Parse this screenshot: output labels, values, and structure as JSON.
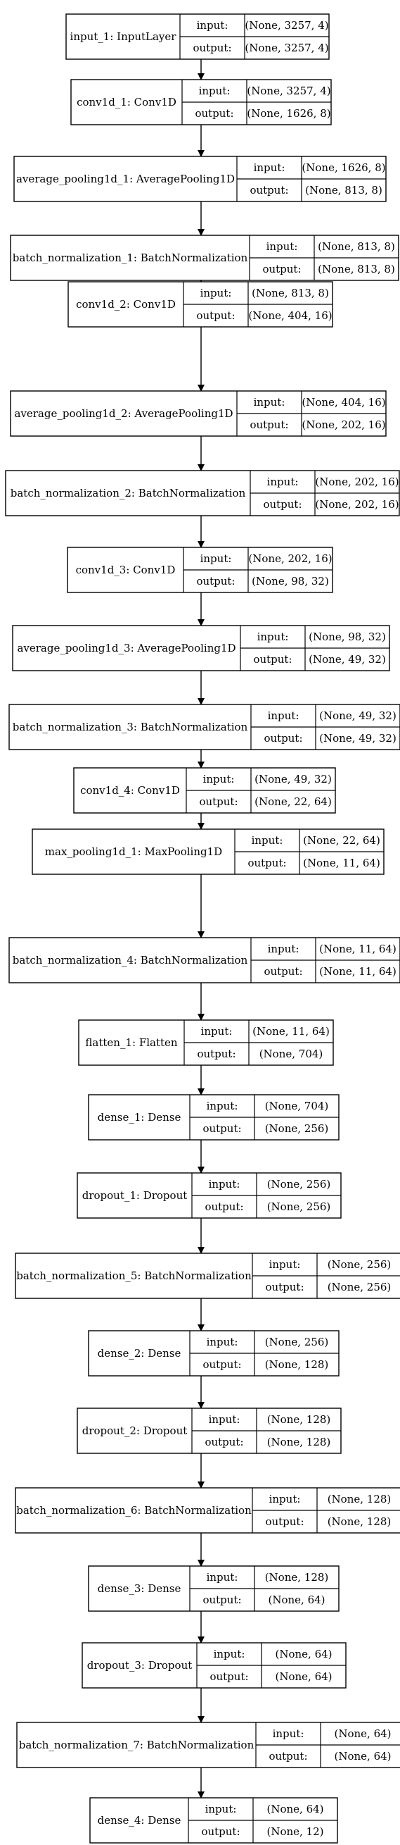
{
  "io_labels": {
    "input": "input:",
    "output": "output:"
  },
  "layers": [
    {
      "name": "input_1: InputLayer",
      "input": "(None, 3257, 4)",
      "output": "(None, 3257, 4)"
    },
    {
      "name": "conv1d_1: Conv1D",
      "input": "(None, 3257, 4)",
      "output": "(None, 1626, 8)"
    },
    {
      "name": "average_pooling1d_1: AveragePooling1D",
      "input": "(None, 1626, 8)",
      "output": "(None, 813, 8)"
    },
    {
      "name": "batch_normalization_1: BatchNormalization",
      "input": "(None, 813, 8)",
      "output": "(None, 813, 8)"
    },
    {
      "name": "conv1d_2: Conv1D",
      "input": "(None, 813, 8)",
      "output": "(None, 404, 16)"
    },
    {
      "name": "average_pooling1d_2: AveragePooling1D",
      "input": "(None, 404, 16)",
      "output": "(None, 202, 16)"
    },
    {
      "name": "batch_normalization_2: BatchNormalization",
      "input": "(None, 202, 16)",
      "output": "(None, 202, 16)"
    },
    {
      "name": "conv1d_3: Conv1D",
      "input": "(None, 202, 16)",
      "output": "(None, 98, 32)"
    },
    {
      "name": "average_pooling1d_3: AveragePooling1D",
      "input": "(None, 98, 32)",
      "output": "(None, 49, 32)"
    },
    {
      "name": "batch_normalization_3: BatchNormalization",
      "input": "(None, 49, 32)",
      "output": "(None, 49, 32)"
    },
    {
      "name": "conv1d_4: Conv1D",
      "input": "(None, 49, 32)",
      "output": "(None, 22, 64)"
    },
    {
      "name": "max_pooling1d_1: MaxPooling1D",
      "input": "(None, 22, 64)",
      "output": "(None, 11, 64)"
    },
    {
      "name": "batch_normalization_4: BatchNormalization",
      "input": "(None, 11, 64)",
      "output": "(None, 11, 64)"
    },
    {
      "name": "flatten_1: Flatten",
      "input": "(None, 11, 64)",
      "output": "(None, 704)"
    },
    {
      "name": "dense_1: Dense",
      "input": "(None, 704)",
      "output": "(None, 256)"
    },
    {
      "name": "dropout_1: Dropout",
      "input": "(None, 256)",
      "output": "(None, 256)"
    },
    {
      "name": "batch_normalization_5: BatchNormalization",
      "input": "(None, 256)",
      "output": "(None, 256)"
    },
    {
      "name": "dense_2: Dense",
      "input": "(None, 256)",
      "output": "(None, 128)"
    },
    {
      "name": "dropout_2: Dropout",
      "input": "(None, 128)",
      "output": "(None, 128)"
    },
    {
      "name": "batch_normalization_6: BatchNormalization",
      "input": "(None, 128)",
      "output": "(None, 128)"
    },
    {
      "name": "dense_3: Dense",
      "input": "(None, 128)",
      "output": "(None, 64)"
    },
    {
      "name": "dropout_3: Dropout",
      "input": "(None, 64)",
      "output": "(None, 64)"
    },
    {
      "name": "batch_normalization_7: BatchNormalization",
      "input": "(None, 64)",
      "output": "(None, 64)"
    },
    {
      "name": "dense_4: Dense",
      "input": "(None, 64)",
      "output": "(None, 12)"
    }
  ]
}
